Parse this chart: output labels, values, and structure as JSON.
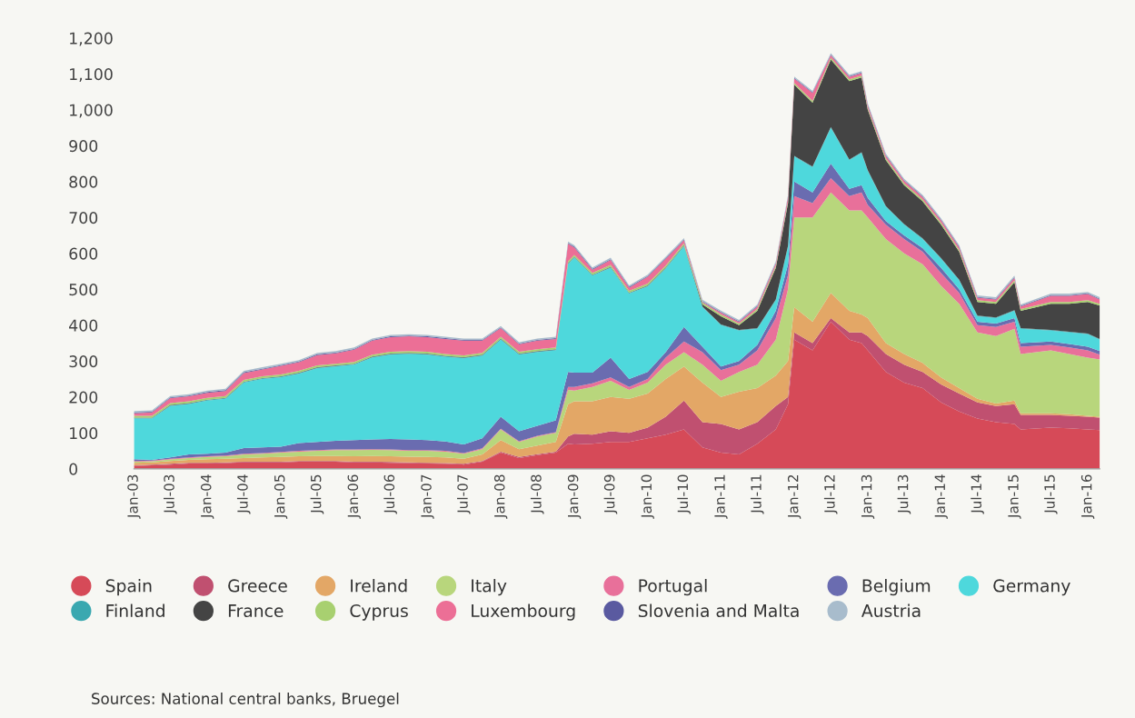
{
  "chart_data": {
    "type": "area",
    "stacked": true,
    "legend": "bottom",
    "grid": false,
    "annotations": [
      "Sources: National central banks, Bruegel"
    ],
    "xlim": [
      "2003-01",
      "2016-03"
    ],
    "ylim": [
      0,
      1200
    ],
    "yticks": [
      0,
      100,
      200,
      300,
      400,
      500,
      600,
      700,
      800,
      900,
      {
        "value": 1000,
        "label": "1,000"
      },
      {
        "value": 1100,
        "label": "1,100"
      },
      {
        "value": 1200,
        "label": "1,200"
      }
    ],
    "xticks": [
      {
        "value": "2003-01",
        "label": "Jan-03"
      },
      {
        "value": "2003-07",
        "label": "Jul-03"
      },
      {
        "value": "2004-01",
        "label": "Jan-04"
      },
      {
        "value": "2004-07",
        "label": "Jul-04"
      },
      {
        "value": "2005-01",
        "label": "Jan-05"
      },
      {
        "value": "2005-07",
        "label": "Jul-05"
      },
      {
        "value": "2006-01",
        "label": "Jan-06"
      },
      {
        "value": "2006-07",
        "label": "Jul-06"
      },
      {
        "value": "2007-01",
        "label": "Jan-07"
      },
      {
        "value": "2007-07",
        "label": "Jul-07"
      },
      {
        "value": "2008-01",
        "label": "Jan-08"
      },
      {
        "value": "2008-07",
        "label": "Jul-08"
      },
      {
        "value": "2009-01",
        "label": "Jan-09"
      },
      {
        "value": "2009-07",
        "label": "Jul-09"
      },
      {
        "value": "2010-01",
        "label": "Jan-10"
      },
      {
        "value": "2010-07",
        "label": "Jul-10"
      },
      {
        "value": "2011-01",
        "label": "Jan-11"
      },
      {
        "value": "2011-07",
        "label": "Jul-11"
      },
      {
        "value": "2012-01",
        "label": "Jan-12"
      },
      {
        "value": "2012-07",
        "label": "Jul-12"
      },
      {
        "value": "2013-01",
        "label": "Jan-13"
      },
      {
        "value": "2013-07",
        "label": "Jul-13"
      },
      {
        "value": "2014-01",
        "label": "Jan-14"
      },
      {
        "value": "2014-07",
        "label": "Jul-14"
      },
      {
        "value": "2015-01",
        "label": "Jan-15"
      },
      {
        "value": "2015-07",
        "label": "Jul-15"
      },
      {
        "value": "2016-01",
        "label": "Jan-16"
      }
    ],
    "x": [
      "2003-01",
      "2003-04",
      "2003-07",
      "2003-10",
      "2004-01",
      "2004-04",
      "2004-07",
      "2004-10",
      "2005-01",
      "2005-04",
      "2005-07",
      "2005-10",
      "2006-01",
      "2006-04",
      "2006-07",
      "2006-10",
      "2007-01",
      "2007-04",
      "2007-07",
      "2007-10",
      "2008-01",
      "2008-04",
      "2008-07",
      "2008-10",
      "2008-12",
      "2009-01",
      "2009-04",
      "2009-07",
      "2009-10",
      "2010-01",
      "2010-04",
      "2010-07",
      "2010-10",
      "2011-01",
      "2011-04",
      "2011-07",
      "2011-10",
      "2011-12",
      "2012-01",
      "2012-04",
      "2012-07",
      "2012-10",
      "2012-12",
      "2013-01",
      "2013-04",
      "2013-07",
      "2013-10",
      "2014-01",
      "2014-04",
      "2014-07",
      "2014-10",
      "2015-01",
      "2015-02",
      "2015-07",
      "2015-10",
      "2016-01",
      "2016-03"
    ],
    "series": [
      {
        "name": "Spain",
        "color": "#d64a58",
        "values": [
          8,
          10,
          12,
          15,
          15,
          16,
          18,
          18,
          18,
          20,
          20,
          20,
          18,
          18,
          17,
          16,
          15,
          14,
          12,
          20,
          45,
          30,
          38,
          45,
          70,
          68,
          70,
          75,
          75,
          85,
          95,
          110,
          60,
          45,
          40,
          70,
          110,
          180,
          360,
          330,
          410,
          360,
          350,
          330,
          270,
          240,
          225,
          185,
          160,
          140,
          130,
          125,
          110,
          115,
          113,
          110,
          108
        ]
      },
      {
        "name": "Greece",
        "color": "#c05070",
        "values": [
          2,
          2,
          2,
          2,
          2,
          2,
          2,
          2,
          2,
          2,
          2,
          2,
          2,
          2,
          2,
          2,
          2,
          2,
          2,
          2,
          3,
          3,
          3,
          3,
          20,
          30,
          25,
          30,
          25,
          30,
          50,
          80,
          70,
          80,
          70,
          60,
          65,
          20,
          20,
          20,
          10,
          20,
          30,
          40,
          50,
          50,
          45,
          50,
          50,
          45,
          45,
          55,
          40,
          35,
          35,
          35,
          35
        ]
      },
      {
        "name": "Ireland",
        "color": "#e3a766",
        "values": [
          7,
          6,
          8,
          8,
          10,
          10,
          10,
          12,
          13,
          13,
          14,
          14,
          15,
          16,
          16,
          16,
          16,
          16,
          14,
          18,
          32,
          22,
          24,
          27,
          90,
          90,
          93,
          95,
          95,
          95,
          105,
          95,
          110,
          75,
          105,
          95,
          85,
          100,
          70,
          60,
          70,
          60,
          50,
          50,
          30,
          30,
          25,
          20,
          15,
          10,
          7,
          10,
          5,
          5,
          4,
          3,
          2
        ]
      },
      {
        "name": "Italy",
        "color": "#b8d67c",
        "values": [
          3,
          3,
          4,
          5,
          6,
          7,
          10,
          10,
          12,
          13,
          14,
          16,
          17,
          17,
          17,
          16,
          17,
          16,
          14,
          15,
          30,
          20,
          25,
          25,
          40,
          30,
          40,
          45,
          25,
          30,
          40,
          40,
          50,
          45,
          55,
          65,
          100,
          200,
          250,
          290,
          280,
          280,
          290,
          280,
          290,
          280,
          275,
          255,
          235,
          185,
          188,
          200,
          165,
          175,
          168,
          162,
          160
        ]
      },
      {
        "name": "Portugal",
        "color": "#e8709a",
        "values": [
          2,
          2,
          2,
          2,
          2,
          2,
          2,
          2,
          2,
          2,
          2,
          2,
          2,
          2,
          2,
          2,
          2,
          2,
          2,
          2,
          2,
          2,
          2,
          2,
          8,
          10,
          10,
          10,
          8,
          10,
          20,
          30,
          35,
          30,
          20,
          40,
          60,
          40,
          60,
          40,
          40,
          40,
          50,
          35,
          40,
          40,
          35,
          35,
          30,
          20,
          25,
          20,
          20,
          15,
          18,
          20,
          13
        ]
      },
      {
        "name": "Belgium",
        "color": "#6a6cb0",
        "values": [
          5,
          2,
          4,
          8,
          7,
          8,
          16,
          16,
          15,
          22,
          23,
          24,
          26,
          27,
          29,
          30,
          28,
          26,
          24,
          28,
          33,
          28,
          28,
          33,
          42,
          40,
          30,
          55,
          22,
          20,
          15,
          40,
          15,
          10,
          10,
          15,
          20,
          30,
          40,
          30,
          40,
          20,
          20,
          20,
          10,
          10,
          10,
          15,
          10,
          10,
          10,
          10,
          10,
          10,
          10,
          10,
          10
        ]
      },
      {
        "name": "Germany",
        "color": "#4ed8dc",
        "values": [
          113,
          115,
          143,
          140,
          148,
          150,
          182,
          190,
          193,
          193,
          205,
          207,
          210,
          228,
          235,
          238,
          238,
          236,
          240,
          230,
          215,
          213,
          205,
          195,
          300,
          320,
          270,
          250,
          238,
          238,
          233,
          225,
          110,
          115,
          85,
          45,
          30,
          50,
          70,
          70,
          100,
          80,
          90,
          75,
          40,
          30,
          25,
          25,
          25,
          15,
          15,
          20,
          40,
          30,
          32,
          35,
          32
        ]
      },
      {
        "name": "Finland",
        "color": "#3aa8b0",
        "values": [
          2,
          2,
          2,
          2,
          2,
          2,
          2,
          2,
          2,
          2,
          2,
          2,
          2,
          2,
          2,
          2,
          2,
          2,
          2,
          2,
          2,
          2,
          2,
          2,
          2,
          2,
          2,
          2,
          2,
          2,
          2,
          2,
          2,
          2,
          2,
          2,
          2,
          2,
          2,
          2,
          2,
          2,
          2,
          2,
          2,
          2,
          2,
          2,
          2,
          2,
          2,
          2,
          2,
          2,
          2,
          2,
          2
        ]
      },
      {
        "name": "France",
        "color": "#444444",
        "values": [
          1,
          1,
          1,
          1,
          1,
          1,
          1,
          1,
          1,
          1,
          1,
          1,
          1,
          1,
          1,
          1,
          1,
          1,
          1,
          1,
          1,
          1,
          1,
          1,
          1,
          1,
          1,
          1,
          1,
          1,
          1,
          1,
          6,
          23,
          13,
          48,
          88,
          118,
          198,
          178,
          188,
          218,
          208,
          168,
          128,
          108,
          103,
          93,
          78,
          38,
          38,
          78,
          48,
          73,
          78,
          88,
          93
        ]
      },
      {
        "name": "Cyprus",
        "color": "#a8d070",
        "values": [
          5,
          5,
          5,
          5,
          5,
          5,
          5,
          5,
          5,
          5,
          5,
          5,
          5,
          5,
          5,
          5,
          5,
          5,
          5,
          5,
          5,
          5,
          5,
          5,
          5,
          5,
          5,
          5,
          5,
          5,
          5,
          5,
          5,
          5,
          5,
          5,
          5,
          5,
          5,
          5,
          5,
          5,
          5,
          5,
          5,
          5,
          5,
          5,
          5,
          5,
          5,
          5,
          5,
          5,
          5,
          5,
          5
        ]
      },
      {
        "name": "Luxembourg",
        "color": "#ec6f96",
        "values": [
          7,
          9,
          14,
          14,
          14,
          14,
          19,
          19,
          24,
          24,
          29,
          29,
          34,
          39,
          41,
          41,
          41,
          42,
          41,
          34,
          24,
          21,
          24,
          24,
          49,
          21,
          9,
          14,
          9,
          19,
          19,
          9,
          2,
          5,
          4,
          7,
          7,
          12,
          12,
          22,
          7,
          7,
          7,
          7,
          7,
          7,
          7,
          7,
          7,
          7,
          7,
          7,
          7,
          17,
          17,
          17,
          12
        ]
      },
      {
        "name": "Slovenia and Malta",
        "color": "#5a5aa0",
        "values": [
          2,
          2,
          2,
          2,
          2,
          2,
          2,
          2,
          2,
          2,
          2,
          2,
          2,
          2,
          2,
          2,
          2,
          2,
          2,
          2,
          2,
          2,
          2,
          2,
          2,
          2,
          2,
          2,
          2,
          2,
          2,
          2,
          2,
          2,
          2,
          2,
          2,
          2,
          2,
          2,
          2,
          2,
          2,
          2,
          2,
          2,
          2,
          2,
          2,
          2,
          2,
          2,
          2,
          2,
          2,
          2,
          2
        ]
      },
      {
        "name": "Austria",
        "color": "#a8bccc",
        "values": [
          4,
          4,
          4,
          4,
          4,
          4,
          4,
          4,
          4,
          4,
          4,
          4,
          4,
          4,
          4,
          4,
          4,
          4,
          4,
          4,
          4,
          4,
          4,
          4,
          4,
          4,
          4,
          4,
          4,
          4,
          4,
          4,
          4,
          4,
          4,
          4,
          4,
          4,
          4,
          4,
          4,
          4,
          4,
          4,
          4,
          4,
          4,
          4,
          4,
          4,
          4,
          4,
          4,
          4,
          4,
          4,
          4
        ]
      }
    ]
  }
}
